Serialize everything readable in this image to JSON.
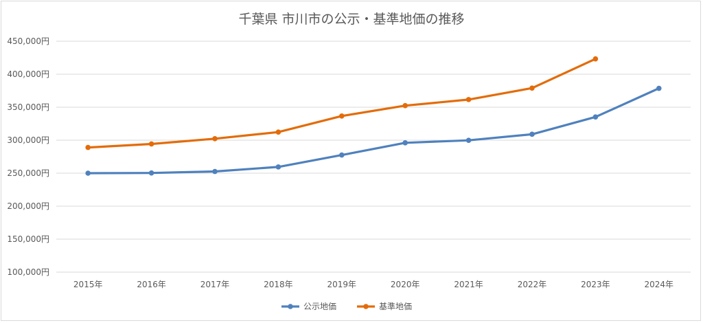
{
  "chart_data": {
    "type": "line",
    "title": "千葉県 市川市の公示・基準地価の推移",
    "xlabel": "",
    "ylabel": "",
    "categories": [
      "2015年",
      "2016年",
      "2017年",
      "2018年",
      "2019年",
      "2020年",
      "2021年",
      "2022年",
      "2023年",
      "2024年"
    ],
    "ylim": [
      100000,
      450000
    ],
    "yticks": [
      100000,
      150000,
      200000,
      250000,
      300000,
      350000,
      400000,
      450000
    ],
    "ytick_labels": [
      "100,000円",
      "150,000円",
      "200,000円",
      "250,000円",
      "300,000円",
      "350,000円",
      "400,000円",
      "450,000円"
    ],
    "grid": true,
    "legend_position": "bottom",
    "series": [
      {
        "name": "公示地価",
        "color": "#4f81bd",
        "values": [
          250000,
          250300,
          252600,
          259500,
          277500,
          296000,
          299800,
          309000,
          335200,
          378600
        ]
      },
      {
        "name": "基準地価",
        "color": "#e36c0a",
        "values": [
          289000,
          294300,
          302300,
          312300,
          336700,
          352400,
          361600,
          379000,
          423200,
          null
        ]
      }
    ]
  }
}
